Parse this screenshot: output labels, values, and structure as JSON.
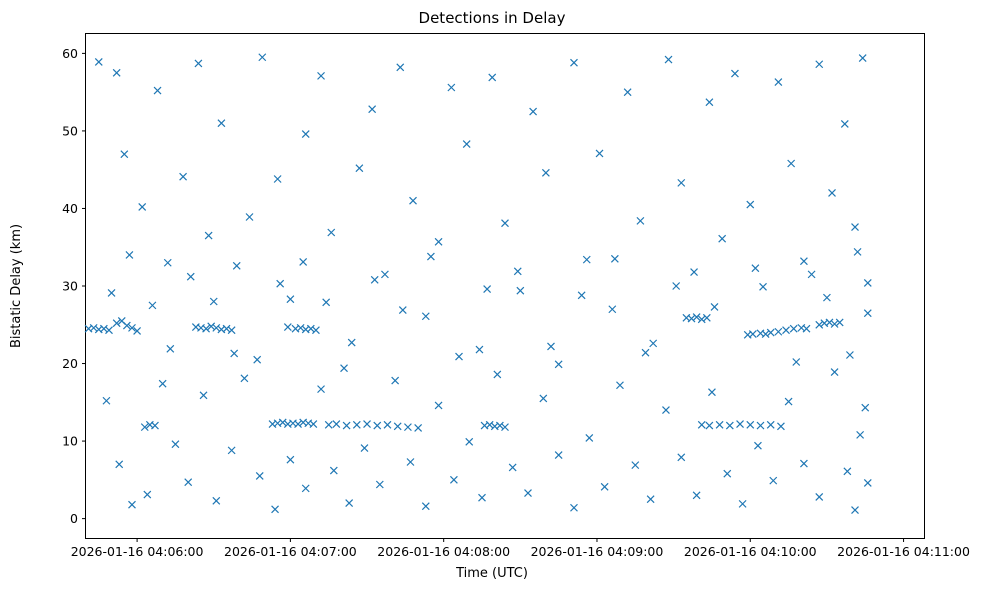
{
  "chart_data": {
    "type": "scatter",
    "title": "Detections in Delay",
    "xlabel": "Time (UTC)",
    "ylabel": "Bistatic Delay (km)",
    "marker": "x",
    "color": "#1f77b4",
    "grid": false,
    "x_ticks": [
      "2026-01-16 04:06:00",
      "2026-01-16 04:07:00",
      "2026-01-16 04:08:00",
      "2026-01-16 04:09:00",
      "2026-01-16 04:10:00",
      "2026-01-16 04:11:00"
    ],
    "y_ticks": [
      0,
      10,
      20,
      30,
      40,
      50,
      60
    ],
    "xlim": [
      "2026-01-16 04:05:40",
      "2026-01-16 04:11:08"
    ],
    "ylim": [
      -2.5,
      62.5
    ],
    "series": [
      {
        "points": [
          [
            "04:05:41",
            24.5
          ],
          [
            "04:05:43",
            24.6
          ],
          [
            "04:05:45",
            24.4
          ],
          [
            "04:05:47",
            24.5
          ],
          [
            "04:05:49",
            24.3
          ],
          [
            "04:05:52",
            25.2
          ],
          [
            "04:05:54",
            25.5
          ],
          [
            "04:05:56",
            24.9
          ],
          [
            "04:05:58",
            24.6
          ],
          [
            "04:06:00",
            24.2
          ],
          [
            "04:06:23",
            24.7
          ],
          [
            "04:06:25",
            24.6
          ],
          [
            "04:06:27",
            24.5
          ],
          [
            "04:06:29",
            24.8
          ],
          [
            "04:06:31",
            24.6
          ],
          [
            "04:06:33",
            24.4
          ],
          [
            "04:06:35",
            24.5
          ],
          [
            "04:06:37",
            24.3
          ],
          [
            "04:06:59",
            24.7
          ],
          [
            "04:07:02",
            24.5
          ],
          [
            "04:07:04",
            24.6
          ],
          [
            "04:07:06",
            24.4
          ],
          [
            "04:07:08",
            24.5
          ],
          [
            "04:07:10",
            24.3
          ],
          [
            "04:09:35",
            25.9
          ],
          [
            "04:09:37",
            25.8
          ],
          [
            "04:09:39",
            26.0
          ],
          [
            "04:09:41",
            25.7
          ],
          [
            "04:09:43",
            25.9
          ],
          [
            "04:09:59",
            23.7
          ],
          [
            "04:10:01",
            23.8
          ],
          [
            "04:10:04",
            23.9
          ],
          [
            "04:10:06",
            23.8
          ],
          [
            "04:10:08",
            24.0
          ],
          [
            "04:10:11",
            24.1
          ],
          [
            "04:10:14",
            24.3
          ],
          [
            "04:10:17",
            24.5
          ],
          [
            "04:10:20",
            24.6
          ],
          [
            "04:10:22",
            24.5
          ],
          [
            "04:10:27",
            25.0
          ],
          [
            "04:10:29",
            25.2
          ],
          [
            "04:10:31",
            25.3
          ],
          [
            "04:10:33",
            25.1
          ],
          [
            "04:10:35",
            25.3
          ],
          [
            "04:06:03",
            11.8
          ],
          [
            "04:06:05",
            12.1
          ],
          [
            "04:06:07",
            12.0
          ],
          [
            "04:06:53",
            12.2
          ],
          [
            "04:06:55",
            12.3
          ],
          [
            "04:06:57",
            12.4
          ],
          [
            "04:06:59",
            12.2
          ],
          [
            "04:07:01",
            12.3
          ],
          [
            "04:07:03",
            12.2
          ],
          [
            "04:07:05",
            12.4
          ],
          [
            "04:07:07",
            12.3
          ],
          [
            "04:07:09",
            12.2
          ],
          [
            "04:07:15",
            12.1
          ],
          [
            "04:07:18",
            12.2
          ],
          [
            "04:07:22",
            12.0
          ],
          [
            "04:07:26",
            12.1
          ],
          [
            "04:07:30",
            12.2
          ],
          [
            "04:07:34",
            12.0
          ],
          [
            "04:07:38",
            12.1
          ],
          [
            "04:07:42",
            11.9
          ],
          [
            "04:07:46",
            11.8
          ],
          [
            "04:07:50",
            11.7
          ],
          [
            "04:08:16",
            12.0
          ],
          [
            "04:08:18",
            12.1
          ],
          [
            "04:08:20",
            11.9
          ],
          [
            "04:08:22",
            12.0
          ],
          [
            "04:08:24",
            11.8
          ],
          [
            "04:09:41",
            12.1
          ],
          [
            "04:09:44",
            12.0
          ],
          [
            "04:09:48",
            12.1
          ],
          [
            "04:09:52",
            12.0
          ],
          [
            "04:09:56",
            12.2
          ],
          [
            "04:10:00",
            12.1
          ],
          [
            "04:10:04",
            12.0
          ],
          [
            "04:10:08",
            12.1
          ],
          [
            "04:10:12",
            11.9
          ],
          [
            "04:05:45",
            58.9
          ],
          [
            "04:05:52",
            57.5
          ],
          [
            "04:05:55",
            47.0
          ],
          [
            "04:06:02",
            40.2
          ],
          [
            "04:06:08",
            55.2
          ],
          [
            "04:06:12",
            33.0
          ],
          [
            "04:06:18",
            44.1
          ],
          [
            "04:06:24",
            58.7
          ],
          [
            "04:06:28",
            36.5
          ],
          [
            "04:06:33",
            51.0
          ],
          [
            "04:06:38",
            21.3
          ],
          [
            "04:06:44",
            38.9
          ],
          [
            "04:06:49",
            59.5
          ],
          [
            "04:06:55",
            43.8
          ],
          [
            "04:07:00",
            28.3
          ],
          [
            "04:07:06",
            49.6
          ],
          [
            "04:07:12",
            57.1
          ],
          [
            "04:07:16",
            36.9
          ],
          [
            "04:07:21",
            19.4
          ],
          [
            "04:07:27",
            45.2
          ],
          [
            "04:07:32",
            52.8
          ],
          [
            "04:07:37",
            31.5
          ],
          [
            "04:07:43",
            58.2
          ],
          [
            "04:07:48",
            41.0
          ],
          [
            "04:07:53",
            26.1
          ],
          [
            "04:07:58",
            35.7
          ],
          [
            "04:08:03",
            55.6
          ],
          [
            "04:08:09",
            48.3
          ],
          [
            "04:08:14",
            21.8
          ],
          [
            "04:08:19",
            56.9
          ],
          [
            "04:08:24",
            38.1
          ],
          [
            "04:08:30",
            29.4
          ],
          [
            "04:08:35",
            52.5
          ],
          [
            "04:08:40",
            44.6
          ],
          [
            "04:08:45",
            19.9
          ],
          [
            "04:08:51",
            58.8
          ],
          [
            "04:08:56",
            33.4
          ],
          [
            "04:09:01",
            47.1
          ],
          [
            "04:09:06",
            27.0
          ],
          [
            "04:09:12",
            55.0
          ],
          [
            "04:09:17",
            38.4
          ],
          [
            "04:09:22",
            22.6
          ],
          [
            "04:09:28",
            59.2
          ],
          [
            "04:09:33",
            43.3
          ],
          [
            "04:09:38",
            31.8
          ],
          [
            "04:09:44",
            53.7
          ],
          [
            "04:09:49",
            36.1
          ],
          [
            "04:09:54",
            57.4
          ],
          [
            "04:10:00",
            40.5
          ],
          [
            "04:10:05",
            29.9
          ],
          [
            "04:10:11",
            56.3
          ],
          [
            "04:10:16",
            45.8
          ],
          [
            "04:10:21",
            33.2
          ],
          [
            "04:10:27",
            58.6
          ],
          [
            "04:10:32",
            42.0
          ],
          [
            "04:10:37",
            50.9
          ],
          [
            "04:10:41",
            37.6
          ],
          [
            "04:10:44",
            59.4
          ],
          [
            "04:10:46",
            30.4
          ],
          [
            "04:10:39",
            21.1
          ],
          [
            "04:05:48",
            15.2
          ],
          [
            "04:05:53",
            7.0
          ],
          [
            "04:05:58",
            1.8
          ],
          [
            "04:06:04",
            3.1
          ],
          [
            "04:06:10",
            17.4
          ],
          [
            "04:06:15",
            9.6
          ],
          [
            "04:06:20",
            4.7
          ],
          [
            "04:06:26",
            15.9
          ],
          [
            "04:06:31",
            2.3
          ],
          [
            "04:06:37",
            8.8
          ],
          [
            "04:06:42",
            18.1
          ],
          [
            "04:06:48",
            5.5
          ],
          [
            "04:06:54",
            1.2
          ],
          [
            "04:07:00",
            7.6
          ],
          [
            "04:07:06",
            3.9
          ],
          [
            "04:07:12",
            16.7
          ],
          [
            "04:07:17",
            6.2
          ],
          [
            "04:07:23",
            2.0
          ],
          [
            "04:07:29",
            9.1
          ],
          [
            "04:07:35",
            4.4
          ],
          [
            "04:07:41",
            17.8
          ],
          [
            "04:07:47",
            7.3
          ],
          [
            "04:07:53",
            1.6
          ],
          [
            "04:07:58",
            14.6
          ],
          [
            "04:08:04",
            5.0
          ],
          [
            "04:08:10",
            9.9
          ],
          [
            "04:08:15",
            2.7
          ],
          [
            "04:08:21",
            18.6
          ],
          [
            "04:08:27",
            6.6
          ],
          [
            "04:08:33",
            3.3
          ],
          [
            "04:08:39",
            15.5
          ],
          [
            "04:08:45",
            8.2
          ],
          [
            "04:08:51",
            1.4
          ],
          [
            "04:08:57",
            10.4
          ],
          [
            "04:09:03",
            4.1
          ],
          [
            "04:09:09",
            17.2
          ],
          [
            "04:09:15",
            6.9
          ],
          [
            "04:09:21",
            2.5
          ],
          [
            "04:09:27",
            14.0
          ],
          [
            "04:09:33",
            7.9
          ],
          [
            "04:09:39",
            3.0
          ],
          [
            "04:09:45",
            16.3
          ],
          [
            "04:09:51",
            5.8
          ],
          [
            "04:09:57",
            1.9
          ],
          [
            "04:10:03",
            9.4
          ],
          [
            "04:10:09",
            4.9
          ],
          [
            "04:10:15",
            15.1
          ],
          [
            "04:10:21",
            7.1
          ],
          [
            "04:10:27",
            2.8
          ],
          [
            "04:10:33",
            18.9
          ],
          [
            "04:10:38",
            6.1
          ],
          [
            "04:10:43",
            10.8
          ],
          [
            "04:10:46",
            4.6
          ],
          [
            "04:10:45",
            14.3
          ],
          [
            "04:10:41",
            1.1
          ],
          [
            "04:05:50",
            29.1
          ],
          [
            "04:05:57",
            34.0
          ],
          [
            "04:06:06",
            27.5
          ],
          [
            "04:06:13",
            21.9
          ],
          [
            "04:06:21",
            31.2
          ],
          [
            "04:06:30",
            28.0
          ],
          [
            "04:06:39",
            32.6
          ],
          [
            "04:06:47",
            20.5
          ],
          [
            "04:06:56",
            30.3
          ],
          [
            "04:07:05",
            33.1
          ],
          [
            "04:07:14",
            27.9
          ],
          [
            "04:07:24",
            22.7
          ],
          [
            "04:07:33",
            30.8
          ],
          [
            "04:07:44",
            26.9
          ],
          [
            "04:07:55",
            33.8
          ],
          [
            "04:08:06",
            20.9
          ],
          [
            "04:08:17",
            29.6
          ],
          [
            "04:08:29",
            31.9
          ],
          [
            "04:08:42",
            22.2
          ],
          [
            "04:08:54",
            28.8
          ],
          [
            "04:09:07",
            33.5
          ],
          [
            "04:09:19",
            21.4
          ],
          [
            "04:09:31",
            30.0
          ],
          [
            "04:09:46",
            27.3
          ],
          [
            "04:10:02",
            32.3
          ],
          [
            "04:10:18",
            20.2
          ],
          [
            "04:10:30",
            28.5
          ],
          [
            "04:10:42",
            34.4
          ],
          [
            "04:10:46",
            26.5
          ],
          [
            "04:10:24",
            31.5
          ]
        ]
      }
    ]
  }
}
